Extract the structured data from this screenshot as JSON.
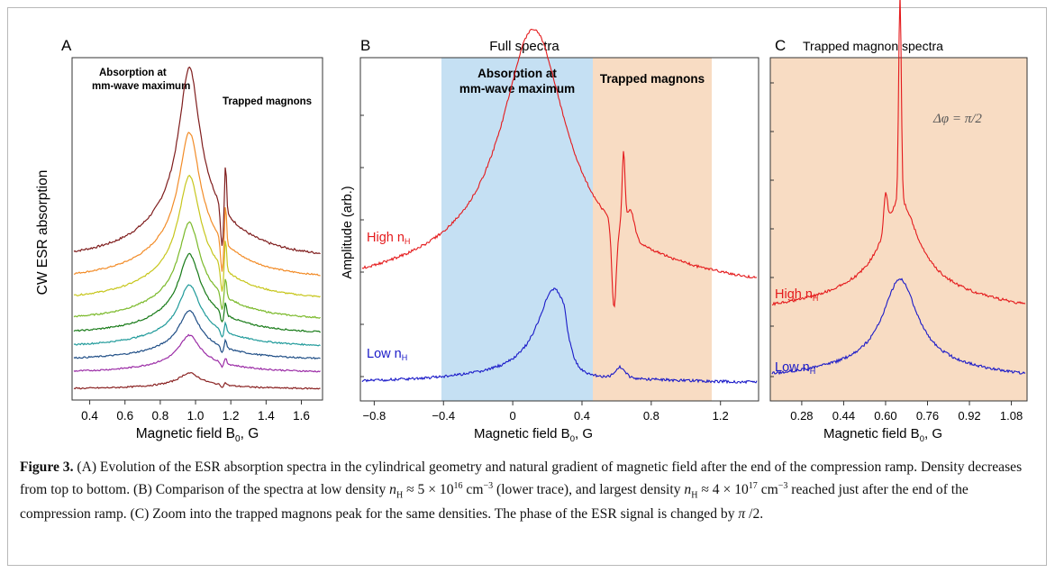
{
  "colors": {
    "blue_band": "#c5e0f3",
    "orange_band": "#f8dcc3",
    "high_trace": "#e41a1c",
    "low_trace": "#1a1ac8",
    "ladder": [
      "#7f1d1d",
      "#f28c28",
      "#c7c61c",
      "#7ab929",
      "#177a17",
      "#1f9a9a",
      "#1f4e86",
      "#9b2ca6",
      "#8a2222"
    ]
  },
  "panel_a": {
    "letter": "A",
    "ylabel": "CW ESR absorption",
    "xlabel_main": "Magnetic field B",
    "xlabel_sub": "0",
    "xlabel_tail": ", G",
    "ann_absorption_1": "Absorption at",
    "ann_absorption_2": "mm-wave maximum",
    "ann_trapped": "Trapped magnons",
    "xticks": [
      "0.4",
      "0.6",
      "0.8",
      "1.0",
      "1.2",
      "1.4",
      "1.6"
    ]
  },
  "panel_b": {
    "letter": "B",
    "title": "Full spectra",
    "ylabel": "Amplitude (arb.)",
    "xlabel_main": "Magnetic field B",
    "xlabel_sub": "0",
    "xlabel_tail": ", G",
    "band_absorption_1": "Absorption at",
    "band_absorption_2": "mm-wave maximum",
    "band_trapped": "Trapped magnons",
    "high_label": "High n",
    "high_sub": "H",
    "low_label": "Low n",
    "low_sub": "H",
    "xticks": [
      "−0.8",
      "−0.4",
      "0",
      "0.4",
      "0.8",
      "1.2"
    ]
  },
  "panel_c": {
    "letter": "C",
    "title": "Trapped magnon spectra",
    "annotation": "Δφ = π/2",
    "xlabel_main": "Magnetic field B",
    "xlabel_sub": "0",
    "xlabel_tail": ", G",
    "high_label": "High n",
    "high_sub": "H",
    "low_label": "Low n",
    "low_sub": "H",
    "xticks": [
      "0.28",
      "0.44",
      "0.60",
      "0.76",
      "0.92",
      "1.08"
    ]
  },
  "caption": {
    "lead": "Figure 3.",
    "s1": " (A) Evolution of the ESR absorption spectra in the cylindrical geometry and natural gradient of magnetic field after the end of the compression ramp. Density decreases from top to bottom. (B) Comparison of the spectra at low density ",
    "n1_var": "n",
    "n1_sub": "H",
    "n1_approx": " ≈ 5 × 10",
    "n1_exp": "16",
    "n1_unit": " cm",
    "n1_unitexp": "−3",
    "s2": " (lower trace), and largest density ",
    "n2_var": "n",
    "n2_sub": "H",
    "n2_approx": " ≈ 4 × 10",
    "n2_exp": "17",
    "n2_unit": " cm",
    "n2_unitexp": "−3",
    "s3": " reached just after the end of the compression ramp. (C) Zoom into the trapped magnons peak for the same densities. The phase of the ESR signal is changed by ",
    "pi": "π",
    "s4": " /2."
  }
}
